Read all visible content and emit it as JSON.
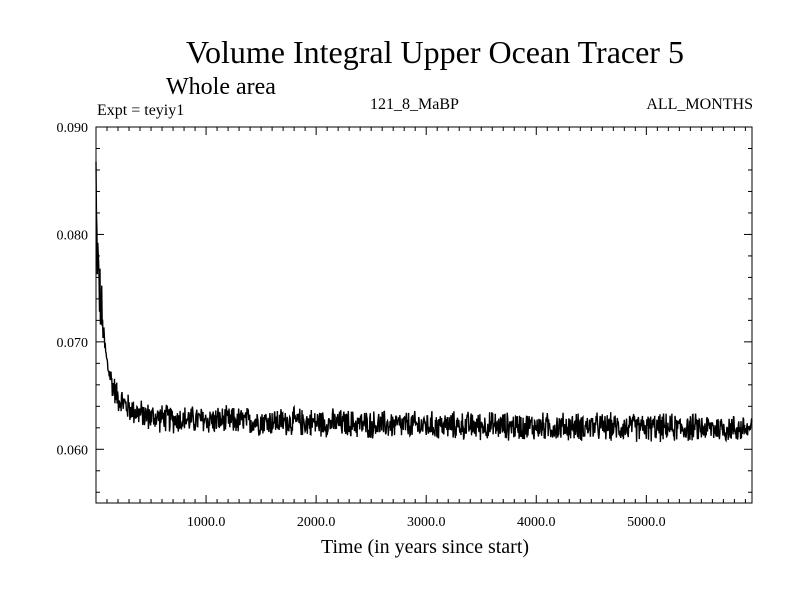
{
  "header": {
    "title": "Volume Integral Upper Ocean Tracer 5",
    "subtitle": "Whole area",
    "expt": "Expt = teyiy1",
    "run": "121_8_MaBP",
    "period": "ALL_MONTHS"
  },
  "chart_data": {
    "type": "line",
    "title": "Volume Integral Upper Ocean Tracer 5",
    "subtitle": "Whole area",
    "xlabel": "Time (in years since start)",
    "ylabel": "",
    "xlim": [
      0,
      5960
    ],
    "ylim": [
      0.055,
      0.09
    ],
    "x_ticks": [
      1000,
      2000,
      3000,
      4000,
      5000
    ],
    "x_tick_labels": [
      "1000.0",
      "2000.0",
      "3000.0",
      "4000.0",
      "5000.0"
    ],
    "y_ticks": [
      0.06,
      0.07,
      0.08,
      0.09
    ],
    "y_tick_labels": [
      "0.060",
      "0.070",
      "0.080",
      "0.090"
    ],
    "series": [
      {
        "name": "teyiy1",
        "color": "#000000",
        "x": [
          0,
          5,
          10,
          20,
          30,
          50,
          75,
          100,
          150,
          200,
          300,
          400,
          500,
          700,
          1000,
          1500,
          2000,
          2500,
          3000,
          3500,
          4000,
          4500,
          5000,
          5500,
          5960
        ],
        "y": [
          0.086,
          0.08,
          0.079,
          0.077,
          0.075,
          0.0725,
          0.07,
          0.068,
          0.066,
          0.0648,
          0.0638,
          0.0633,
          0.063,
          0.0628,
          0.0627,
          0.0626,
          0.0625,
          0.0623,
          0.0622,
          0.0622,
          0.0621,
          0.0621,
          0.062,
          0.062,
          0.0619
        ],
        "noise_amplitude": 0.0015
      }
    ]
  }
}
